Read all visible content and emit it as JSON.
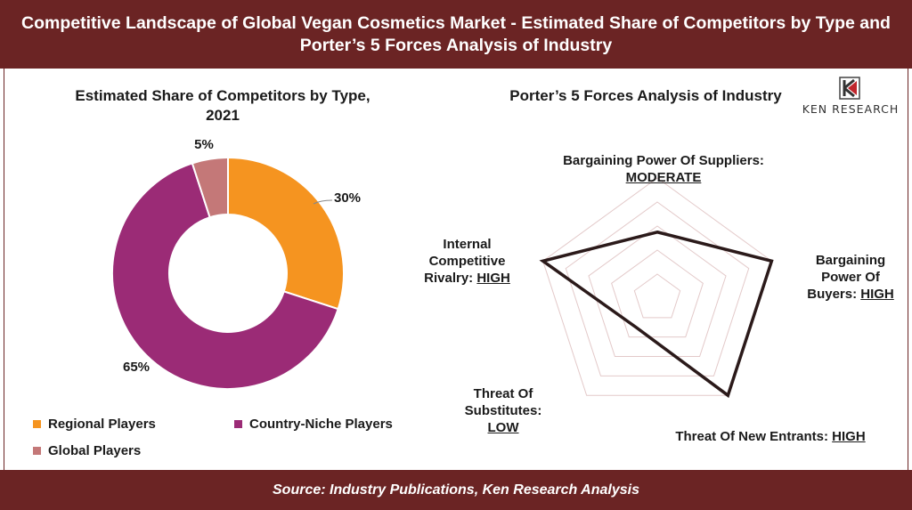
{
  "header": {
    "title": "Competitive Landscape of Global Vegan Cosmetics Market - Estimated Share of Competitors by Type and Porter’s 5 Forces Analysis of Industry"
  },
  "footer": {
    "source": "Source: Industry Publications, Ken Research Analysis"
  },
  "logo": {
    "text": "KEN RESEARCH",
    "icon": "ken-research-k-icon"
  },
  "chart_data": [
    {
      "type": "pie",
      "variant": "donut",
      "title": "Estimated Share of Competitors by Type, 2021",
      "categories": [
        "Regional Players",
        "Country-Niche Players",
        "Global Players"
      ],
      "values": [
        30,
        65,
        5
      ],
      "labels": [
        "30%",
        "65%",
        "5%"
      ],
      "colors": [
        "#f59420",
        "#9b2b76",
        "#c47878"
      ],
      "legend": "bottom"
    },
    {
      "type": "radar",
      "title": "Porter’s 5 Forces Analysis of Industry",
      "axes": [
        {
          "label": "Bargaining Power Of Suppliers:",
          "rating": "MODERATE",
          "value": 0.55
        },
        {
          "label": "Bargaining Power Of Buyers:",
          "rating": "HIGH",
          "value": 1.0
        },
        {
          "label": "Threat Of New Entrants:",
          "rating": "HIGH",
          "value": 1.0
        },
        {
          "label": "Threat Of Substitutes:",
          "rating": "LOW",
          "value": 0.3
        },
        {
          "label": "Internal Competitive Rivalry:",
          "rating": "HIGH",
          "value": 1.0
        }
      ],
      "grid_rings": 5,
      "colors": {
        "line": "#2b1a1a",
        "grid": "#e3c9c9"
      }
    }
  ]
}
